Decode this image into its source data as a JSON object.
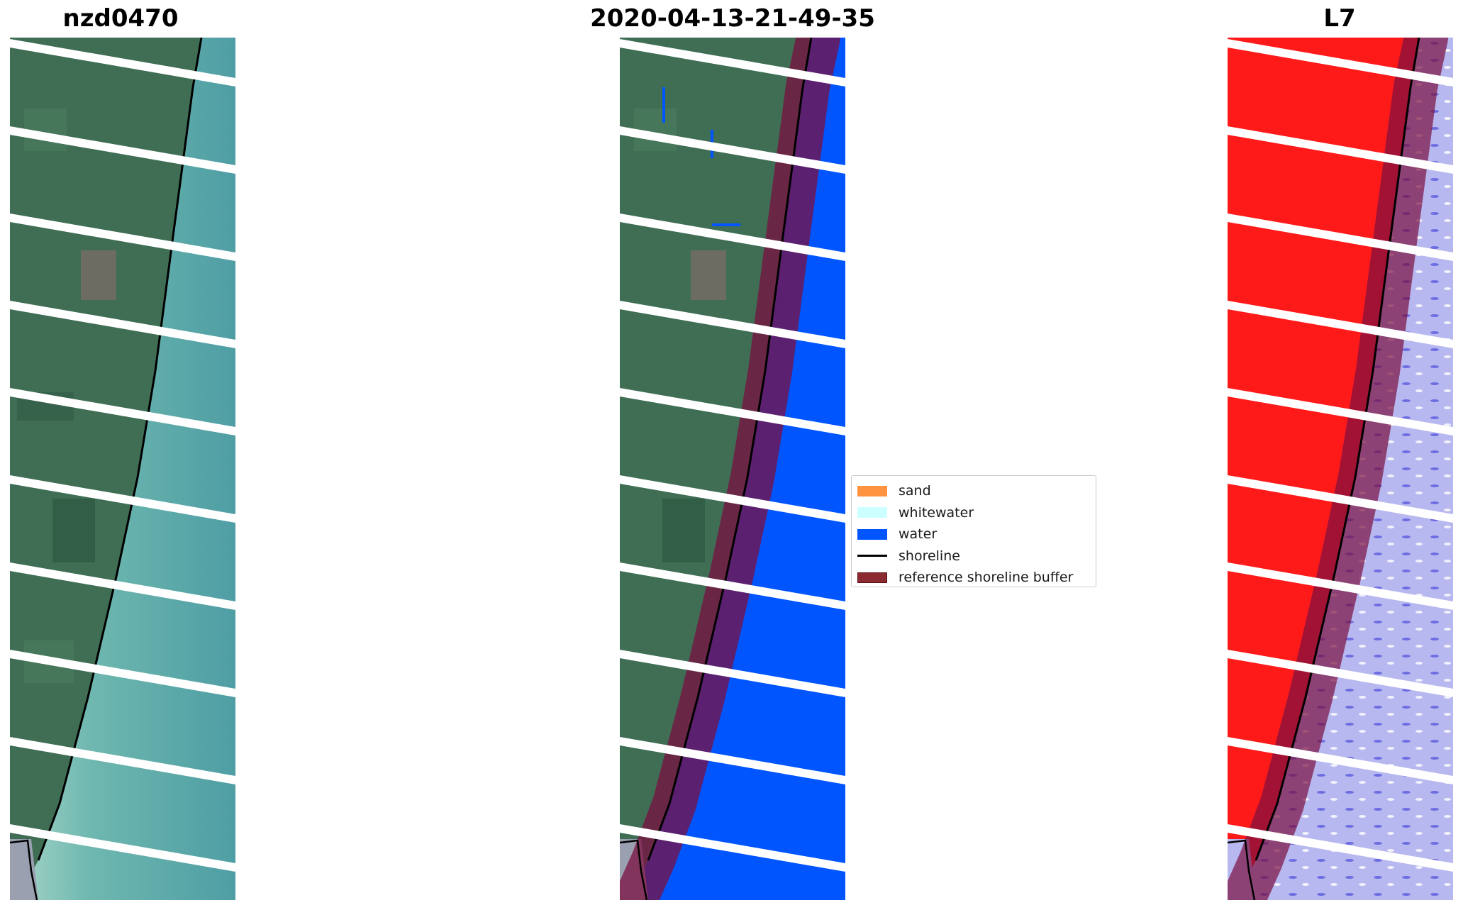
{
  "panels": [
    {
      "title": "nzd0470"
    },
    {
      "title": "2020-04-13-21-49-35"
    },
    {
      "title": "L7"
    }
  ],
  "legend": {
    "items": [
      {
        "label": "sand",
        "kind": "patch",
        "color": "#ff9340"
      },
      {
        "label": "whitewater",
        "kind": "patch",
        "color": "#ccffff"
      },
      {
        "label": "water",
        "kind": "patch",
        "color": "#0055ff"
      },
      {
        "label": "shoreline",
        "kind": "line",
        "color": "#000000"
      },
      {
        "label": "reference shoreline buffer",
        "kind": "patch",
        "color": "#8b2a30"
      }
    ]
  },
  "colors": {
    "land": "#3f6e55",
    "sea_rgb": "#5aa9a6",
    "water_class": "#0055ff",
    "buffer": "#7a1040",
    "index_land": "#ff1a1a",
    "index_water": "#b8b8f0",
    "gap": "#ffffff"
  }
}
